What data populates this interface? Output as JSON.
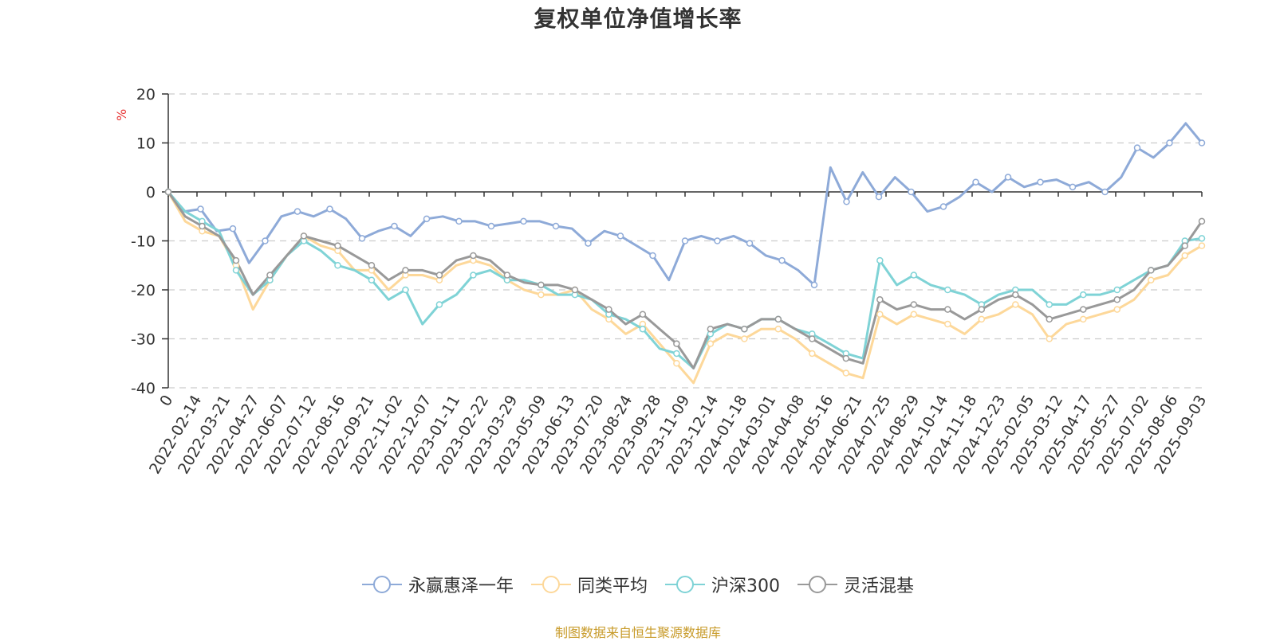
{
  "title": "复权单位净值增长率",
  "y_unit": "%",
  "source": "制图数据来自恒生聚源数据库",
  "chart_data": {
    "type": "line",
    "title": "复权单位净值增长率",
    "ylabel": "%",
    "ylim": [
      -40,
      20
    ],
    "yticks": [
      20,
      10,
      0,
      -10,
      -20,
      -30,
      -40
    ],
    "grid": true,
    "legend_position": "bottom",
    "x_labels": [
      "0",
      "2022-02-14",
      "2022-03-21",
      "2022-04-27",
      "2022-06-07",
      "2022-07-12",
      "2022-08-16",
      "2022-09-21",
      "2022-11-02",
      "2022-12-07",
      "2023-01-11",
      "2023-02-22",
      "2023-03-29",
      "2023-05-09",
      "2023-06-13",
      "2023-07-20",
      "2023-08-24",
      "2023-09-28",
      "2023-11-09",
      "2023-12-14",
      "2024-01-18",
      "2024-03-01",
      "2024-04-08",
      "2024-05-16",
      "2024-06-21",
      "2024-07-25",
      "2024-08-29",
      "2024-10-14",
      "2024-11-18",
      "2024-12-23",
      "2025-02-05",
      "2025-03-12",
      "2025-04-17",
      "2025-05-27",
      "2025-07-02",
      "2025-08-06",
      "2025-09-03"
    ],
    "series": [
      {
        "name": "永赢惠泽一年",
        "color": "#8eaad8",
        "values": [
          0,
          -4,
          -3.5,
          -8,
          -7.5,
          -14.5,
          -10,
          -5,
          -4,
          -5,
          -3.5,
          -5.5,
          -9.5,
          -8,
          -7,
          -9,
          -5.5,
          -5,
          -6,
          -6,
          -7,
          -6.5,
          -6,
          -6,
          -7,
          -7.5,
          -10.5,
          -8,
          -9,
          -11,
          -13,
          -18,
          -10,
          -9,
          -10,
          -9,
          -10.5,
          -13,
          -14,
          -16,
          -19,
          5,
          -2,
          4,
          -1,
          3,
          0,
          -4,
          -3,
          -1,
          2,
          0,
          3,
          1,
          2,
          2.5,
          1,
          2,
          0,
          3,
          9,
          7,
          10,
          14,
          10
        ]
      },
      {
        "name": "同类平均",
        "color": "#fdd89a",
        "values": [
          0,
          -6,
          -8,
          -9,
          -15,
          -24,
          -18,
          -13,
          -9,
          -11,
          -12,
          -16,
          -16,
          -20,
          -17,
          -17,
          -18,
          -15,
          -14,
          -15,
          -18,
          -20,
          -21,
          -21,
          -20,
          -24,
          -26,
          -29,
          -27,
          -31,
          -35,
          -39,
          -31,
          -29,
          -30,
          -28,
          -28,
          -30,
          -33,
          -35,
          -37,
          -38,
          -25,
          -27,
          -25,
          -26,
          -27,
          -29,
          -26,
          -25,
          -23,
          -25,
          -30,
          -27,
          -26,
          -25,
          -24,
          -22,
          -18,
          -17,
          -13,
          -11
        ]
      },
      {
        "name": "沪深300",
        "color": "#7fd3d6",
        "values": [
          0,
          -4,
          -6,
          -8,
          -16,
          -21,
          -18,
          -13,
          -10,
          -12,
          -15,
          -16,
          -18,
          -22,
          -20,
          -27,
          -23,
          -21,
          -17,
          -16,
          -18,
          -18,
          -19,
          -21,
          -21,
          -22,
          -25,
          -26,
          -28,
          -32,
          -33,
          -36,
          -29,
          -27,
          -28,
          -26,
          -26,
          -28,
          -29,
          -31,
          -33,
          -34,
          -14,
          -19,
          -17,
          -19,
          -20,
          -21,
          -23,
          -21,
          -20,
          -20,
          -23,
          -23,
          -21,
          -21,
          -20,
          -18,
          -16,
          -15,
          -10,
          -9.5
        ]
      },
      {
        "name": "灵活混基",
        "color": "#999999",
        "values": [
          0,
          -5,
          -7,
          -9,
          -14,
          -21,
          -17,
          -13,
          -9,
          -10,
          -11,
          -13,
          -15,
          -18,
          -16,
          -16,
          -17,
          -14,
          -13,
          -14,
          -17,
          -18.5,
          -19,
          -19,
          -20,
          -22,
          -24,
          -27,
          -25,
          -28,
          -31,
          -36,
          -28,
          -27,
          -28,
          -26,
          -26,
          -28,
          -30,
          -32,
          -34,
          -35,
          -22,
          -24,
          -23,
          -24,
          -24,
          -26,
          -24,
          -22,
          -21,
          -23,
          -26,
          -25,
          -24,
          -23,
          -22,
          -20,
          -16,
          -15,
          -11,
          -6
        ]
      }
    ]
  }
}
